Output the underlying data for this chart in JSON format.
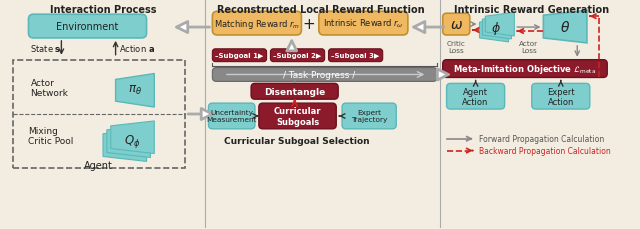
{
  "title_left": "Interaction Process",
  "title_mid": "Reconstructed Local Reward Function",
  "title_right": "Intrinsic Reward Generation",
  "bg_color": "#f2ede0",
  "env_color": "#7ecece",
  "orange_box_color": "#f0b860",
  "dark_red_color": "#8b1a2a",
  "gray_bar_color": "#888888",
  "teal_color": "#7ecece",
  "legend_arrow_color": "#888888",
  "legend_dashed_color": "#cc2222",
  "section_line_color": "#aaaaaa",
  "arrow_outline_color": "#aaaaaa",
  "box_edge_teal": "#5ab8b8",
  "box_edge_orange": "#c09030",
  "box_edge_red": "#6b1020",
  "text_dark": "#222222",
  "text_mid": "#444444"
}
